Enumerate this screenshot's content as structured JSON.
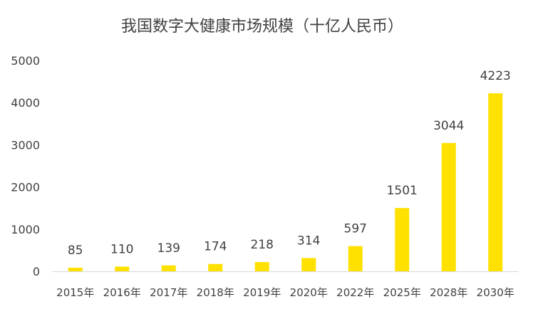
{
  "chart_data": {
    "type": "bar",
    "title": "我国数字大健康市场规模（十亿人民币）",
    "categories": [
      "2015年",
      "2016年",
      "2017年",
      "2018年",
      "2019年",
      "2020年",
      "2022年",
      "2025年",
      "2028年",
      "2030年"
    ],
    "values": [
      85,
      110,
      139,
      174,
      218,
      314,
      597,
      1501,
      3044,
      4223
    ],
    "data_labels": [
      "85",
      "110",
      "139",
      "174",
      "218",
      "314",
      "597",
      "1501",
      "3044",
      "4223"
    ],
    "ylim": [
      0,
      5000
    ],
    "yticks": [
      0,
      1000,
      2000,
      3000,
      4000,
      5000
    ],
    "ytick_labels": [
      "0",
      "1000",
      "2000",
      "3000",
      "4000",
      "5000"
    ],
    "grid": false,
    "bar_color": "#FFE100",
    "text_color": "#404040",
    "axis_color": "#d9d9d9"
  }
}
